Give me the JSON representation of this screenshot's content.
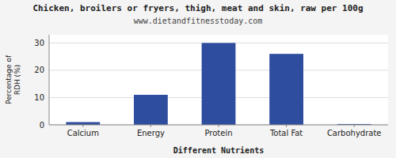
{
  "chart_data": {
    "type": "bar",
    "title": "Chicken, broilers or fryers, thigh, meat and skin, raw per 100g",
    "subtitle": "www.dietandfitnesstoday.com",
    "xlabel": "Different Nutrients",
    "ylabel": "Percentage of\nRDH (%)",
    "categories": [
      "Calcium",
      "Energy",
      "Protein",
      "Total Fat",
      "Carbohydrate"
    ],
    "values": [
      1,
      11,
      30,
      26,
      0.3
    ],
    "color": "#2e4d9e",
    "ylim": [
      0,
      33
    ],
    "yticks": [
      0,
      10,
      20,
      30
    ],
    "grid": true
  }
}
